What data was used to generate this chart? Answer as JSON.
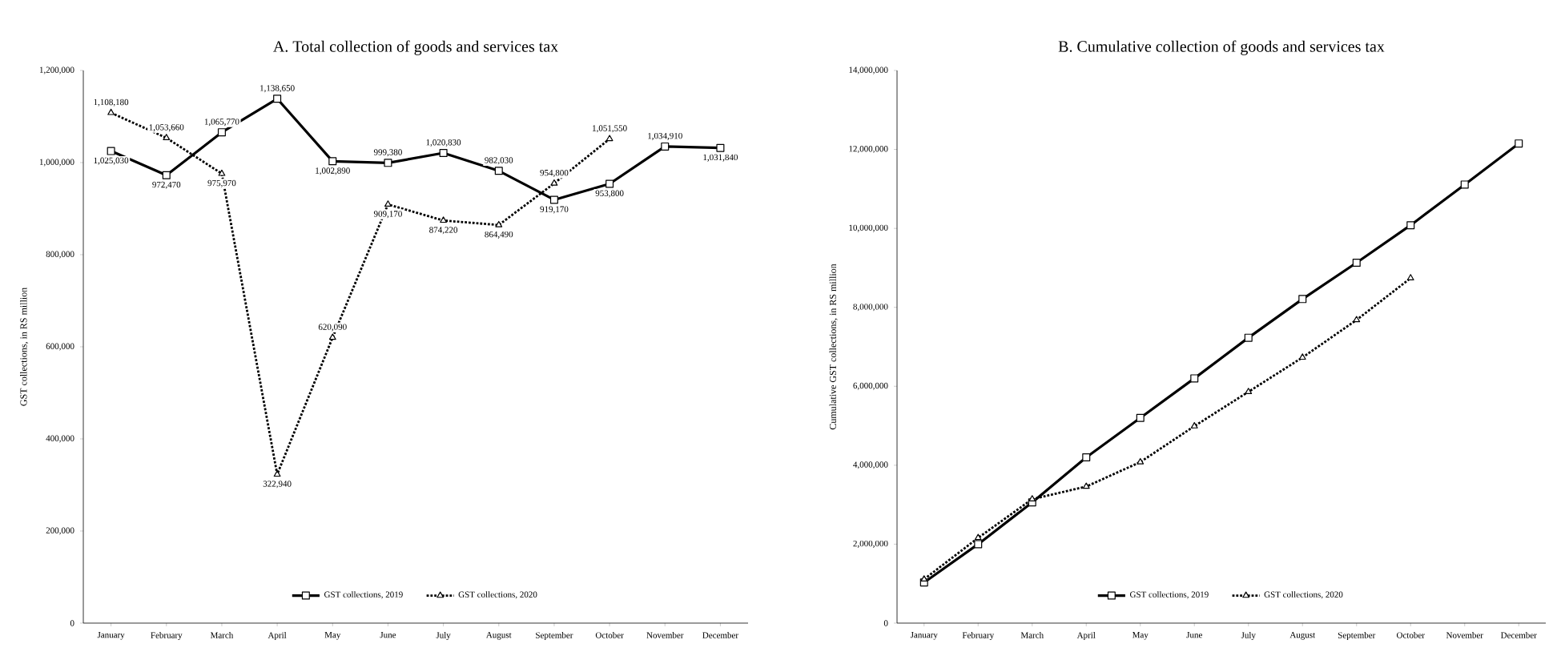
{
  "chart_data": [
    {
      "type": "line",
      "title": "A. Total collection of goods and services tax",
      "ylabel": "GST collections, in RS million",
      "categories": [
        "January",
        "February",
        "March",
        "April",
        "May",
        "June",
        "July",
        "August",
        "September",
        "October",
        "November",
        "December"
      ],
      "ylim": [
        0,
        1200000
      ],
      "yticks": [
        0,
        {
          "value": 200000,
          "label": "200,000"
        },
        {
          "value": 400000,
          "label": "400,000"
        },
        {
          "value": 600000,
          "label": "600,000"
        },
        {
          "value": 800000,
          "label": "800,000"
        },
        {
          "value": 1000000,
          "label": "1,000,000"
        },
        {
          "value": 1200000,
          "label": "1,200,000"
        }
      ],
      "legend": "bottom",
      "series": [
        {
          "name": "GST collections, 2019",
          "color": "#000000",
          "marker": "square",
          "line_style": "solid",
          "values": [
            1025030,
            972470,
            1065770,
            1138650,
            1002890,
            999380,
            1020830,
            982030,
            919170,
            953800,
            1034910,
            1031840
          ],
          "value_labels": [
            "1,025,030",
            "972,470",
            "1,065,770",
            "1,138,650",
            "1,002,890",
            "999,380",
            "1,020,830",
            "982,030",
            "919,170",
            "953,800",
            "1,034,910",
            "1,031,840"
          ]
        },
        {
          "name": "GST collections, 2020",
          "color": "#000000",
          "marker": "triangle",
          "line_style": "dotted",
          "values": [
            1108180,
            1053660,
            975970,
            322940,
            620090,
            909170,
            874220,
            864490,
            954800,
            1051550,
            null,
            null
          ],
          "value_labels": [
            "1,108,180",
            "1,053,660",
            "975,970",
            "322,940",
            "620,090",
            "909,170",
            "874,220",
            "864,490",
            "954,800",
            "1,051,550",
            null,
            null
          ]
        }
      ]
    },
    {
      "type": "line",
      "title": "B. Cumulative collection of goods and services tax",
      "ylabel": "Cumulative GST collections, in RS million",
      "categories": [
        "January",
        "February",
        "March",
        "April",
        "May",
        "June",
        "July",
        "August",
        "September",
        "October",
        "November",
        "December"
      ],
      "ylim": [
        0,
        14000000
      ],
      "yticks": [
        0,
        {
          "value": 2000000,
          "label": "2,000,000"
        },
        {
          "value": 4000000,
          "label": "4,000,000"
        },
        {
          "value": 6000000,
          "label": "6,000,000"
        },
        {
          "value": 8000000,
          "label": "8,000,000"
        },
        {
          "value": 10000000,
          "label": "10,000,000"
        },
        {
          "value": 12000000,
          "label": "12,000,000"
        },
        {
          "value": 14000000,
          "label": "14,000,000"
        }
      ],
      "legend": "bottom",
      "series": [
        {
          "name": "GST collections, 2019",
          "color": "#000000",
          "marker": "square",
          "line_style": "solid",
          "values": [
            1030000,
            2000000,
            3060000,
            4200000,
            5200000,
            6200000,
            7230000,
            8210000,
            9130000,
            10080000,
            11110000,
            12150000
          ]
        },
        {
          "name": "GST collections, 2020",
          "color": "#000000",
          "marker": "triangle",
          "line_style": "dotted",
          "values": [
            1110000,
            2160000,
            3140000,
            3460000,
            4080000,
            4990000,
            5860000,
            6730000,
            7680000,
            8740000,
            null,
            null
          ]
        }
      ]
    }
  ]
}
